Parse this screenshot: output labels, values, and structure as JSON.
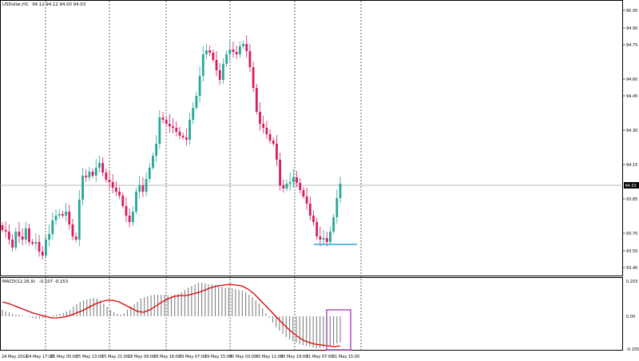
{
  "window": {
    "symbol_title": "USDollar,H1",
    "ohlc_readout": "94.12 94.12 94.00 94.03"
  },
  "colors": {
    "bull": "#26a69a",
    "bear": "#d81b60",
    "macd_line": "#e00000",
    "histogram": "#808080",
    "support_line": "#2aa5e8",
    "highlight_box": "#b44fc8",
    "current_price_bg": "#000000"
  },
  "chart_data": [
    {
      "type": "candlestick",
      "y_ticks": [
        "95.05",
        "94.90",
        "94.75",
        "94.60",
        "94.45",
        "94.30",
        "94.15",
        "94.03",
        "93.85",
        "93.70",
        "93.55",
        "93.40"
      ],
      "current_price": "94.03",
      "support_level": 93.67,
      "ylim": [
        93.44,
        95.1
      ],
      "x_ticks": [
        "24 May 2018",
        "24 May 17:00",
        "25 May 05:00",
        "25 May 13:00",
        "25 May 21:00",
        "28 May 09:00",
        "28 May 16:00",
        "29 May 07:00",
        "29 May 15:00",
        "30 May 03:00",
        "30 May 11:00",
        "30 May 19:00",
        "31 May 07:00",
        "31 May 15:00"
      ]
    },
    {
      "type": "bar",
      "indicator": "MACD(12,26,9)",
      "readout": "-0.107 -0.153",
      "y_ticks": [
        "0.203",
        "0.00",
        "-0.155"
      ],
      "ylim": [
        -0.155,
        0.203
      ]
    }
  ]
}
